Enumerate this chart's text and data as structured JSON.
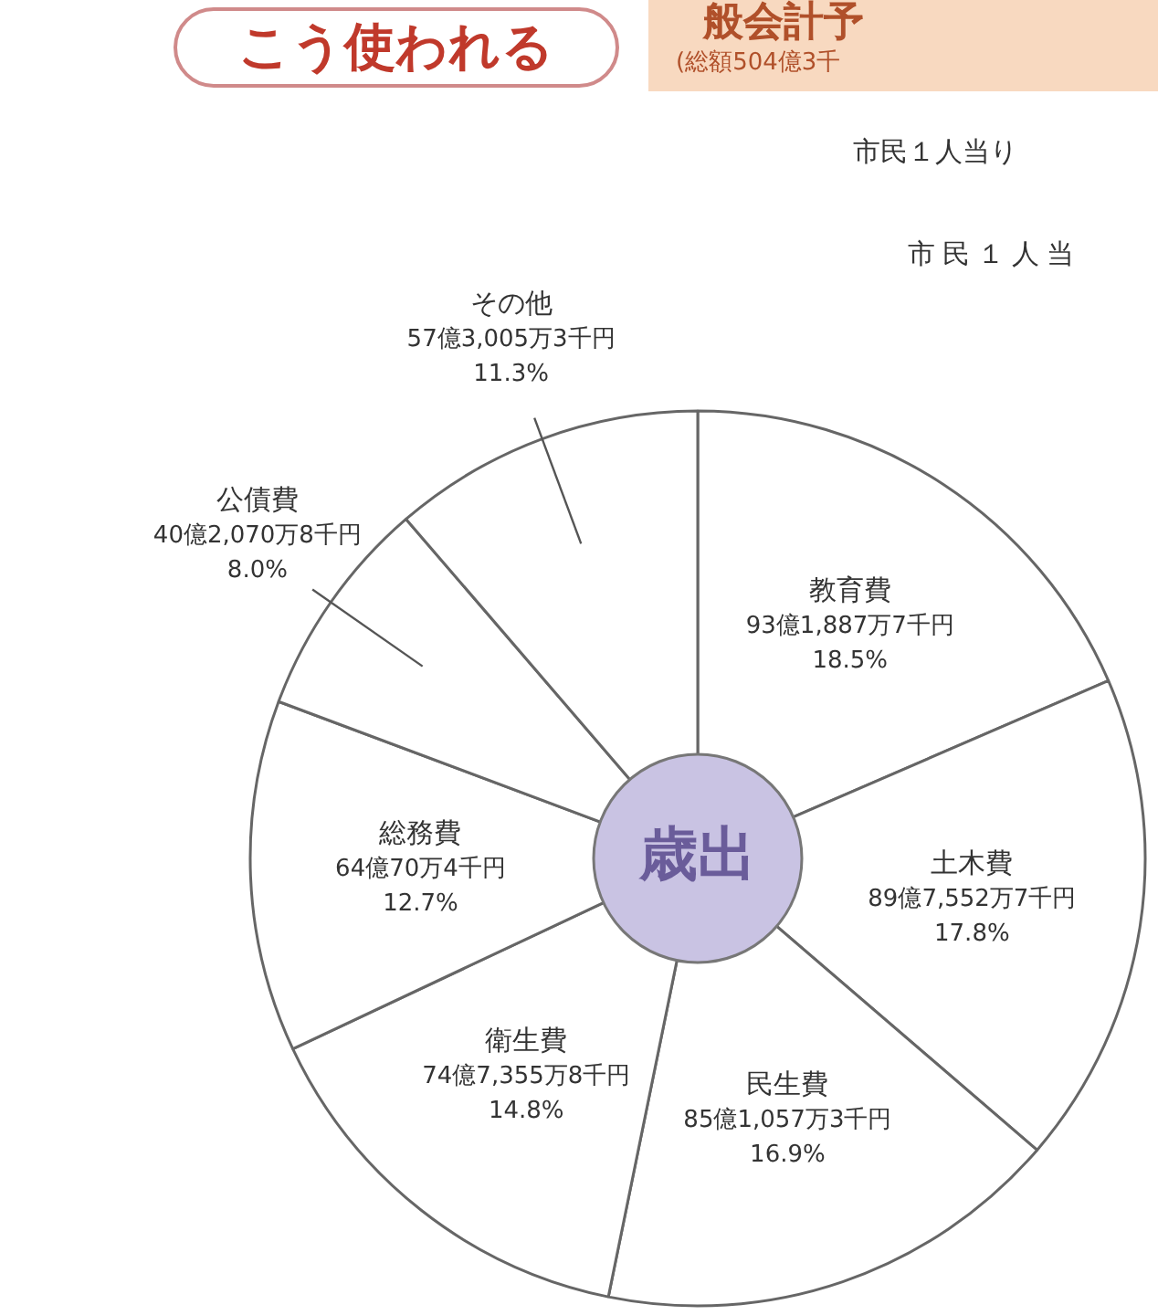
{
  "chart_data": {
    "type": "donut",
    "title": "こう使われる",
    "categories": [
      "教育費",
      "土木費",
      "民生費",
      "衛生費",
      "総務費",
      "公債費",
      "その他"
    ],
    "values": [
      18.5,
      17.8,
      16.9,
      14.8,
      12.7,
      8.0,
      11.3
    ],
    "colors": [
      "#ffffff",
      "#ffffff",
      "#ffffff",
      "#ffffff",
      "#ffffff",
      "#ffffff",
      "#ffffff"
    ],
    "value_labels": [
      "93億1,887万7千円\n18.5%",
      "89億7,552万7千円\n17.8%",
      "85億1,057万3千円\n16.9%",
      "74億7,355万8千円\n14.8%",
      "64億70万4千円\n12.7%",
      "40億2,070万8千円\n8.0%",
      "57億3,005万3千円\n11.3%"
    ],
    "annotations": [
      "歳出",
      "般会計予",
      "(総額504億3千",
      "市民１人当り",
      "市民１人当"
    ],
    "legend": false
  }
}
